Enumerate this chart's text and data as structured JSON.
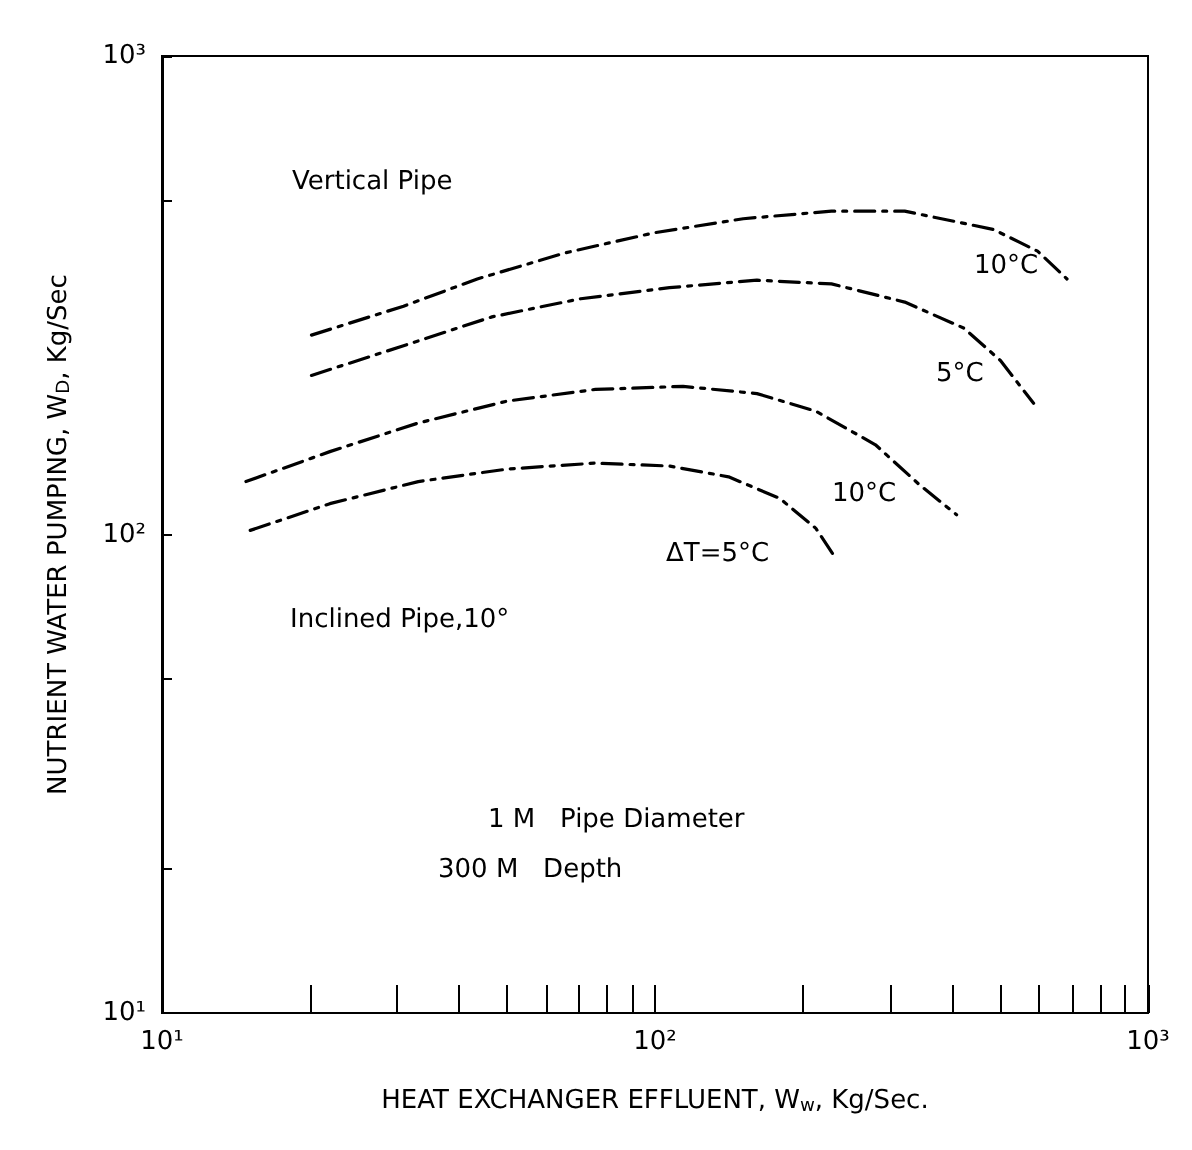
{
  "chart_data": {
    "type": "line",
    "xlabel": "HEAT EXCHANGER EFFLUENT, W$_{w}$, Kg/Sec.",
    "ylabel": "NUTRIENT WATER PUMPING, W$_{D}$, Kg/Sec",
    "log": "xy",
    "grid": false,
    "marker": "none",
    "line_style": "dashed",
    "xlim": [
      10,
      1000
    ],
    "ylim": [
      10,
      1000
    ],
    "xticks": [
      {
        "value": 10,
        "label": "10¹"
      },
      {
        "value": 20,
        "label": null
      },
      {
        "value": 30,
        "label": null
      },
      {
        "value": 40,
        "label": null
      },
      {
        "value": 50,
        "label": null
      },
      {
        "value": 60,
        "label": null
      },
      {
        "value": 70,
        "label": null
      },
      {
        "value": 80,
        "label": null
      },
      {
        "value": 90,
        "label": null
      },
      {
        "value": 100,
        "label": "10²"
      },
      {
        "value": 200,
        "label": null
      },
      {
        "value": 300,
        "label": null
      },
      {
        "value": 400,
        "label": null
      },
      {
        "value": 500,
        "label": null
      },
      {
        "value": 600,
        "label": null
      },
      {
        "value": 700,
        "label": null
      },
      {
        "value": 800,
        "label": null
      },
      {
        "value": 900,
        "label": null
      },
      {
        "value": 1000,
        "label": "10³"
      }
    ],
    "yticks": [
      {
        "value": 10,
        "label": "10¹"
      },
      {
        "value": 20,
        "label": null
      },
      {
        "value": 50,
        "label": null
      },
      {
        "value": 100,
        "label": "10²"
      },
      {
        "value": 500,
        "label": null
      },
      {
        "value": 1000,
        "label": "10³"
      }
    ],
    "series": [
      {
        "color": "#000000",
        "x": [
          20.1,
          30.9,
          43.6,
          65.9,
          99.5,
          151,
          228,
          321,
          486,
          597,
          685
        ],
        "values": [
          261,
          300,
          342,
          388,
          427,
          457,
          474,
          474,
          434,
          391,
          342
        ]
      },
      {
        "color": "#000000",
        "x": [
          20.1,
          30.9,
          46.7,
          70.7,
          107,
          161,
          228,
          321,
          423,
          502,
          586
        ],
        "values": [
          215,
          248,
          285,
          311,
          328,
          340,
          334,
          306,
          270,
          231,
          188
        ]
      },
      {
        "color": "#000000",
        "x": [
          14.8,
          21.9,
          33.1,
          50.1,
          75.7,
          114,
          161,
          212,
          280,
          344,
          409
        ],
        "values": [
          129,
          149,
          171,
          190,
          201,
          204,
          197,
          181,
          154,
          127,
          110
        ]
      },
      {
        "color": "#000000",
        "x": [
          15.1,
          21.9,
          33.1,
          50.1,
          75.7,
          107,
          141,
          179,
          212,
          232
        ],
        "values": [
          102,
          116,
          129,
          137,
          141,
          139,
          132,
          119,
          103,
          89.5
        ]
      }
    ],
    "annotations": [
      "Vertical Pipe",
      "10°C",
      "5°C",
      "10°C",
      "ΔT=5°C",
      "Inclined Pipe,10°",
      "1 M   Pipe Diameter",
      "300 M   Depth"
    ]
  }
}
